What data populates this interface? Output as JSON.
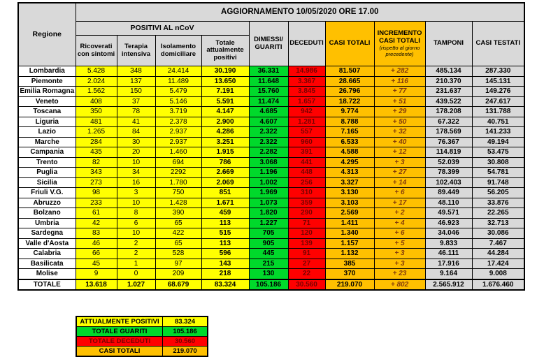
{
  "header": {
    "title": "AGGIORNAMENTO 10/05/2020 ORE 17.00",
    "region": "Regione",
    "group": "POSITIVI AL nCoV",
    "sub": [
      "Ricoverati con sintomi",
      "Terapia intensiva",
      "Isolamento domiciliare",
      "Totale attualmente positivi"
    ],
    "dimessi": "DIMESSI/ GUARITI",
    "deceduti": "DECEDUTI",
    "casi_totali": "CASI TOTALI",
    "incremento": "INCREMENTO CASI TOTALI",
    "incremento_note": "(rispetto al giorno precedente)",
    "tamponi": "TAMPONI",
    "casi_testati": "CASI TESTATI"
  },
  "chart_data": {
    "type": "table",
    "title": "AGGIORNAMENTO 10/05/2020 ORE 17.00",
    "columns": [
      "Regione",
      "Ricoverati con sintomi",
      "Terapia intensiva",
      "Isolamento domiciliare",
      "Totale attualmente positivi",
      "DIMESSI/GUARITI",
      "DECEDUTI",
      "CASI TOTALI",
      "INCREMENTO CASI TOTALI (rispetto al giorno precedente)",
      "TAMPONI",
      "CASI TESTATI"
    ],
    "rows": [
      [
        "Lombardia",
        "5.428",
        "348",
        "24.414",
        "30.190",
        "36.331",
        "14.986",
        "81.507",
        "+ 282",
        "485.134",
        "287.330"
      ],
      [
        "Piemonte",
        "2.024",
        "137",
        "11.489",
        "13.650",
        "11.648",
        "3.367",
        "28.665",
        "+ 116",
        "210.370",
        "145.131"
      ],
      [
        "Emilia Romagna",
        "1.562",
        "150",
        "5.479",
        "7.191",
        "15.760",
        "3.845",
        "26.796",
        "+ 77",
        "231.637",
        "149.276"
      ],
      [
        "Veneto",
        "408",
        "37",
        "5.146",
        "5.591",
        "11.474",
        "1.657",
        "18.722",
        "+ 51",
        "439.522",
        "247.617"
      ],
      [
        "Toscana",
        "350",
        "78",
        "3.719",
        "4.147",
        "4.685",
        "942",
        "9.774",
        "+ 29",
        "178.208",
        "131.788"
      ],
      [
        "Liguria",
        "481",
        "41",
        "2.378",
        "2.900",
        "4.607",
        "1.281",
        "8.788",
        "+ 50",
        "67.322",
        "40.751"
      ],
      [
        "Lazio",
        "1.265",
        "84",
        "2.937",
        "4.286",
        "2.322",
        "557",
        "7.165",
        "+ 32",
        "178.569",
        "141.233"
      ],
      [
        "Marche",
        "284",
        "30",
        "2.937",
        "3.251",
        "2.322",
        "960",
        "6.533",
        "+ 40",
        "76.367",
        "49.194"
      ],
      [
        "Campania",
        "435",
        "20",
        "1.460",
        "1.915",
        "2.282",
        "391",
        "4.588",
        "+ 12",
        "114.819",
        "53.475"
      ],
      [
        "Trento",
        "82",
        "10",
        "694",
        "786",
        "3.068",
        "441",
        "4.295",
        "+ 3",
        "52.039",
        "30.808"
      ],
      [
        "Puglia",
        "343",
        "34",
        "2292",
        "2.669",
        "1.196",
        "448",
        "4.313",
        "+ 27",
        "78.399",
        "54.781"
      ],
      [
        "Sicilia",
        "273",
        "16",
        "1.780",
        "2.069",
        "1.002",
        "256",
        "3.327",
        "+ 14",
        "102.403",
        "91.748"
      ],
      [
        "Friuli V.G.",
        "98",
        "3",
        "750",
        "851",
        "1.969",
        "310",
        "3.130",
        "+ 6",
        "89.449",
        "56.205"
      ],
      [
        "Abruzzo",
        "233",
        "10",
        "1.428",
        "1.671",
        "1.073",
        "359",
        "3.103",
        "+ 17",
        "48.110",
        "33.876"
      ],
      [
        "Bolzano",
        "61",
        "8",
        "390",
        "459",
        "1.820",
        "290",
        "2.569",
        "+ 2",
        "49.571",
        "22.265"
      ],
      [
        "Umbria",
        "42",
        "6",
        "65",
        "113",
        "1.227",
        "71",
        "1.411",
        "+ 4",
        "46.923",
        "32.713"
      ],
      [
        "Sardegna",
        "83",
        "10",
        "422",
        "515",
        "705",
        "120",
        "1.340",
        "+ 6",
        "34.046",
        "30.086"
      ],
      [
        "Valle d'Aosta",
        "46",
        "2",
        "65",
        "113",
        "905",
        "139",
        "1.157",
        "+ 5",
        "9.833",
        "7.467"
      ],
      [
        "Calabria",
        "66",
        "2",
        "528",
        "596",
        "445",
        "91",
        "1.132",
        "+ 3",
        "46.111",
        "44.284"
      ],
      [
        "Basilicata",
        "45",
        "1",
        "97",
        "143",
        "215",
        "27",
        "385",
        "+ 3",
        "17.916",
        "17.424"
      ],
      [
        "Molise",
        "9",
        "0",
        "209",
        "218",
        "130",
        "22",
        "370",
        "+ 23",
        "9.164",
        "9.008"
      ]
    ],
    "total_row": [
      "TOTALE",
      "13.618",
      "1.027",
      "68.679",
      "83.324",
      "105.186",
      "30.560",
      "219.070",
      "+ 802",
      "2.565.912",
      "1.676.460"
    ]
  },
  "summary": {
    "rows": [
      {
        "label": "ATTUALMENTE POSITIVI",
        "value": "83.324",
        "color": "#ffff00",
        "text_color": "#000000"
      },
      {
        "label": "TOTALE GUARITI",
        "value": "105.186",
        "color": "#00d92b",
        "text_color": "#000000"
      },
      {
        "label": "TOTALE DECEDUTI",
        "value": "30.560",
        "color": "#ff0000",
        "text_color": "#7a0000"
      },
      {
        "label": "CASI TOTALI",
        "value": "219.070",
        "color": "#ffc000",
        "text_color": "#000000"
      }
    ]
  },
  "colors": {
    "yellow": "#ffff00",
    "green": "#00d92b",
    "red": "#ff0000",
    "orange": "#ffc000",
    "grey": "#d9d9d9",
    "incremento_text": "#843c0c",
    "deceduti_text": "#7a0000"
  }
}
